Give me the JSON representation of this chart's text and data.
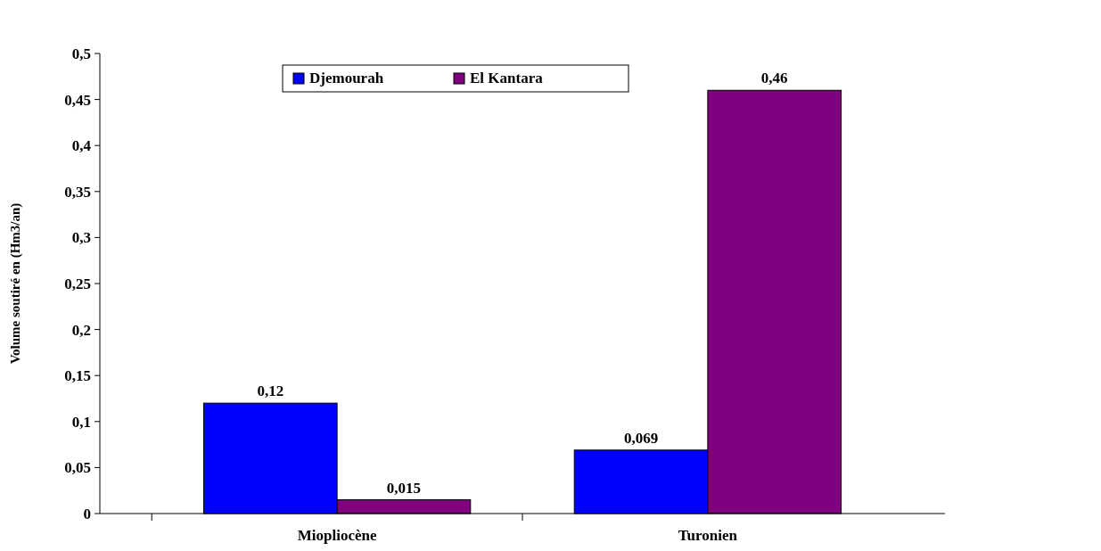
{
  "chart_data": {
    "type": "bar",
    "ylabel": "Volume soutiré en (Hm3/an)",
    "categories": [
      "Miopliocène",
      "Turonien"
    ],
    "series": [
      {
        "name": "Djemourah",
        "color": "#0000ff",
        "values": [
          0.12,
          0.069
        ],
        "value_labels": [
          "0,12",
          "0,069"
        ]
      },
      {
        "name": "El Kantara",
        "color": "#800080",
        "values": [
          0.015,
          0.46
        ],
        "value_labels": [
          "0,015",
          "0,46"
        ]
      }
    ],
    "ylim": [
      0,
      0.5
    ],
    "yticks": [
      0,
      {
        "value": 0.05,
        "label": "0,05"
      },
      {
        "value": 0.1,
        "label": "0,1"
      },
      {
        "value": 0.15,
        "label": "0,15"
      },
      {
        "value": 0.2,
        "label": "0,2"
      },
      {
        "value": 0.25,
        "label": "0,25"
      },
      {
        "value": 0.3,
        "label": "0,3"
      },
      {
        "value": 0.35,
        "label": "0,35"
      },
      {
        "value": 0.4,
        "label": "0,4"
      },
      {
        "value": 0.45,
        "label": "0,45"
      },
      {
        "value": 0.5,
        "label": "0,5"
      }
    ],
    "grid": false,
    "legend": "top"
  }
}
